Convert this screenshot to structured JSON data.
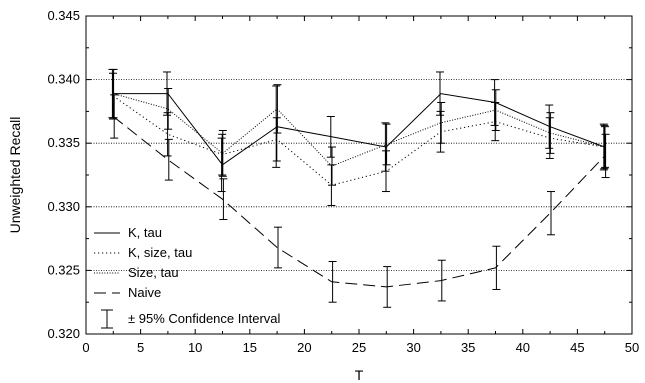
{
  "chart_data": {
    "type": "line",
    "title": "",
    "xlabel": "T",
    "ylabel": "Unweighted Recall",
    "xlim": [
      0,
      50
    ],
    "ylim": [
      0.32,
      0.345
    ],
    "x_ticks": [
      "0",
      "5",
      "10",
      "15",
      "20",
      "25",
      "30",
      "35",
      "40",
      "45",
      "50"
    ],
    "y_ticks": [
      "0.320",
      "0.325",
      "0.330",
      "0.335",
      "0.340",
      "0.345"
    ],
    "y_gridlines": [
      0.325,
      0.33,
      0.335,
      0.34
    ],
    "legend_position": "bottom-left",
    "x": [
      2.5,
      7.5,
      12.5,
      17.5,
      22.5,
      27.5,
      32.5,
      37.5,
      42.5,
      47.5
    ],
    "series": [
      {
        "name": "K, tau",
        "style": "solid",
        "values": [
          0.3389,
          0.3389,
          0.3333,
          0.3363,
          0.3355,
          0.3347,
          0.3389,
          0.3382,
          0.3363,
          0.3347
        ],
        "error": [
          0.0019,
          0.0017,
          0.0021,
          0.0032,
          0.0016,
          0.0019,
          0.0017,
          0.0018,
          0.0017,
          0.0018
        ]
      },
      {
        "name": "K, size, tau",
        "style": "dotted",
        "values": [
          0.3387,
          0.3357,
          0.3341,
          0.3353,
          0.3317,
          0.3328,
          0.3359,
          0.3367,
          0.3354,
          0.3347
        ],
        "error": [
          0.0018,
          0.0017,
          0.0016,
          0.0017,
          0.0016,
          0.0016,
          0.0016,
          0.0015,
          0.0016,
          0.0017
        ]
      },
      {
        "name": "Size, tau",
        "style": "densely-dotted",
        "values": [
          0.3389,
          0.3377,
          0.3342,
          0.3377,
          0.3332,
          0.3349,
          0.3366,
          0.3376,
          0.3358,
          0.3347
        ],
        "error": [
          0.0019,
          0.0016,
          0.0018,
          0.0019,
          0.0015,
          0.0016,
          0.0016,
          0.0016,
          0.0016,
          0.0016
        ]
      },
      {
        "name": "Naive",
        "style": "dashed",
        "values": [
          0.3371,
          0.3337,
          0.3306,
          0.3268,
          0.3241,
          0.3237,
          0.3242,
          0.3252,
          0.3295,
          0.334
        ],
        "error": [
          0.0017,
          0.0016,
          0.0016,
          0.0016,
          0.0016,
          0.0016,
          0.0016,
          0.0017,
          0.0017,
          0.0017
        ]
      }
    ],
    "legend_extra": "± 95% Confidence Interval"
  }
}
